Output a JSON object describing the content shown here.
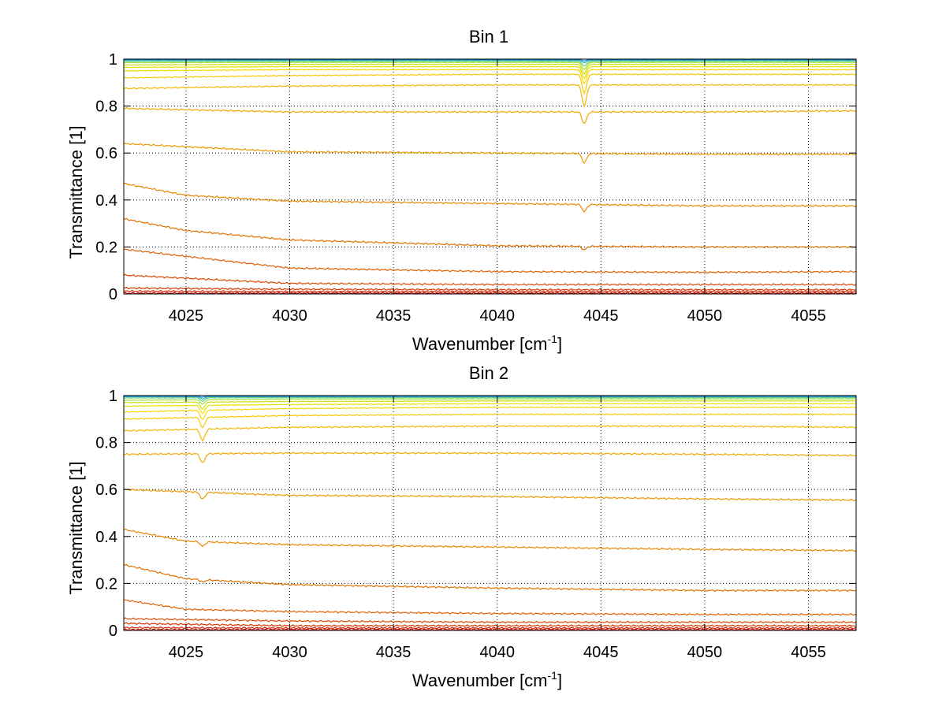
{
  "chart_data": [
    {
      "type": "line",
      "title": "Bin 1",
      "xlabel": "Wavenumber [cm-1]",
      "xlabel_base": "Wavenumber [cm",
      "xlabel_sup": "-1",
      "xlabel_end": "]",
      "ylabel": "Transmittance [1]",
      "xlim": [
        4022,
        4057.3
      ],
      "ylim": [
        0,
        1
      ],
      "xticks": [
        4025,
        4030,
        4035,
        4040,
        4045,
        4050,
        4055
      ],
      "xtick_labels": [
        "4025",
        "4030",
        "4035",
        "4040",
        "4045",
        "4050",
        "4055"
      ],
      "yticks": [
        0,
        0.2,
        0.4,
        0.6,
        0.8,
        1
      ],
      "ytick_labels": [
        "0",
        "0.2",
        "0.4",
        "0.6",
        "0.8",
        "1"
      ],
      "grid": true,
      "series_colors": [
        "#cc0000",
        "#d42200",
        "#d63800",
        "#dc4a00",
        "#e06000",
        "#e27000",
        "#e88800",
        "#ec9800",
        "#f0a800",
        "#f4b800",
        "#f8c800",
        "#f8d800",
        "#e8e000",
        "#c8e010",
        "#a0e040",
        "#60d080",
        "#30b0c0",
        "#1080e0"
      ],
      "series": [
        {
          "x": [
            4022,
            4030,
            4040,
            4050,
            4057.3
          ],
          "y": [
            0.003,
            0.003,
            0.003,
            0.003,
            0.003
          ],
          "dip": 0
        },
        {
          "x": [
            4022,
            4030,
            4040,
            4050,
            4057.3
          ],
          "y": [
            0.012,
            0.01,
            0.01,
            0.01,
            0.01
          ],
          "dip": 0
        },
        {
          "x": [
            4022,
            4030,
            4040,
            4050,
            4057.3
          ],
          "y": [
            0.025,
            0.02,
            0.018,
            0.018,
            0.018
          ],
          "dip": 0
        },
        {
          "x": [
            4022,
            4030,
            4040,
            4050,
            4057.3
          ],
          "y": [
            0.08,
            0.045,
            0.04,
            0.04,
            0.04
          ],
          "dip": 0
        },
        {
          "x": [
            4022,
            4030,
            4040,
            4050,
            4057.3
          ],
          "y": [
            0.19,
            0.11,
            0.095,
            0.092,
            0.095
          ],
          "dip": 0
        },
        {
          "x": [
            4022,
            4025,
            4030,
            4040,
            4050,
            4057.3
          ],
          "y": [
            0.32,
            0.27,
            0.23,
            0.205,
            0.2,
            0.2
          ],
          "dip": 0.015
        },
        {
          "x": [
            4022,
            4025,
            4030,
            4040,
            4050,
            4057.3
          ],
          "y": [
            0.47,
            0.42,
            0.395,
            0.385,
            0.375,
            0.375
          ],
          "dip": 0.03
        },
        {
          "x": [
            4022,
            4030,
            4040,
            4050,
            4057.3
          ],
          "y": [
            0.64,
            0.605,
            0.6,
            0.595,
            0.595
          ],
          "dip": 0.04
        },
        {
          "x": [
            4022,
            4030,
            4040,
            4050,
            4057.3
          ],
          "y": [
            0.79,
            0.775,
            0.775,
            0.775,
            0.78
          ],
          "dip": 0.05
        },
        {
          "x": [
            4022,
            4030,
            4040,
            4050,
            4057.3
          ],
          "y": [
            0.875,
            0.885,
            0.89,
            0.89,
            0.89
          ],
          "dip": 0.09
        },
        {
          "x": [
            4022,
            4030,
            4040,
            4050,
            4057.3
          ],
          "y": [
            0.92,
            0.93,
            0.935,
            0.935,
            0.935
          ],
          "dip": 0.08
        },
        {
          "x": [
            4022,
            4030,
            4040,
            4050,
            4057.3
          ],
          "y": [
            0.95,
            0.955,
            0.955,
            0.955,
            0.955
          ],
          "dip": 0.06
        },
        {
          "x": [
            4022,
            4030,
            4040,
            4050,
            4057.3
          ],
          "y": [
            0.965,
            0.968,
            0.968,
            0.968,
            0.968
          ],
          "dip": 0.05
        },
        {
          "x": [
            4022,
            4030,
            4040,
            4050,
            4057.3
          ],
          "y": [
            0.975,
            0.978,
            0.978,
            0.978,
            0.978
          ],
          "dip": 0.04
        },
        {
          "x": [
            4022,
            4030,
            4040,
            4050,
            4057.3
          ],
          "y": [
            0.985,
            0.986,
            0.986,
            0.986,
            0.986
          ],
          "dip": 0.03
        },
        {
          "x": [
            4022,
            4030,
            4040,
            4050,
            4057.3
          ],
          "y": [
            0.99,
            0.991,
            0.991,
            0.991,
            0.991
          ],
          "dip": 0.02
        },
        {
          "x": [
            4022,
            4030,
            4040,
            4050,
            4057.3
          ],
          "y": [
            0.995,
            0.995,
            0.995,
            0.995,
            0.995
          ],
          "dip": 0.01
        },
        {
          "x": [
            4022,
            4030,
            4040,
            4050,
            4057.3
          ],
          "y": [
            0.998,
            0.998,
            0.998,
            0.998,
            0.998
          ],
          "dip": 0.005
        }
      ],
      "feature_x": 4044.2,
      "feature_width": 0.15
    },
    {
      "type": "line",
      "title": "Bin 2",
      "xlabel": "Wavenumber [cm-1]",
      "xlabel_base": "Wavenumber [cm",
      "xlabel_sup": "-1",
      "xlabel_end": "]",
      "ylabel": "Transmittance [1]",
      "xlim": [
        4022,
        4057.3
      ],
      "ylim": [
        0,
        1
      ],
      "xticks": [
        4025,
        4030,
        4035,
        4040,
        4045,
        4050,
        4055
      ],
      "xtick_labels": [
        "4025",
        "4030",
        "4035",
        "4040",
        "4045",
        "4050",
        "4055"
      ],
      "yticks": [
        0,
        0.2,
        0.4,
        0.6,
        0.8,
        1
      ],
      "ytick_labels": [
        "0",
        "0.2",
        "0.4",
        "0.6",
        "0.8",
        "1"
      ],
      "grid": true,
      "series_colors": [
        "#cc0000",
        "#d42200",
        "#d63800",
        "#dc4a00",
        "#e06000",
        "#e27000",
        "#e88800",
        "#ec9800",
        "#f0a800",
        "#f4b800",
        "#f8c800",
        "#f8d800",
        "#e8e000",
        "#c8e010",
        "#a0e040",
        "#60d080",
        "#30b0c0",
        "#1080e0"
      ],
      "series": [
        {
          "x": [
            4022,
            4030,
            4040,
            4050,
            4057.3
          ],
          "y": [
            0.003,
            0.003,
            0.003,
            0.003,
            0.003
          ],
          "dip": 0
        },
        {
          "x": [
            4022,
            4030,
            4040,
            4050,
            4057.3
          ],
          "y": [
            0.012,
            0.01,
            0.01,
            0.01,
            0.01
          ],
          "dip": 0
        },
        {
          "x": [
            4022,
            4030,
            4040,
            4050,
            4057.3
          ],
          "y": [
            0.03,
            0.02,
            0.02,
            0.02,
            0.02
          ],
          "dip": 0
        },
        {
          "x": [
            4022,
            4030,
            4040,
            4050,
            4057.3
          ],
          "y": [
            0.05,
            0.04,
            0.035,
            0.035,
            0.035
          ],
          "dip": 0
        },
        {
          "x": [
            4022,
            4025,
            4030,
            4040,
            4050,
            4057.3
          ],
          "y": [
            0.13,
            0.09,
            0.08,
            0.072,
            0.068,
            0.068
          ],
          "dip": 0
        },
        {
          "x": [
            4022,
            4025,
            4030,
            4040,
            4050,
            4057.3
          ],
          "y": [
            0.28,
            0.22,
            0.195,
            0.18,
            0.17,
            0.17
          ],
          "dip": 0.01
        },
        {
          "x": [
            4022,
            4025,
            4030,
            4040,
            4050,
            4057.3
          ],
          "y": [
            0.43,
            0.38,
            0.365,
            0.355,
            0.345,
            0.34
          ],
          "dip": 0.02
        },
        {
          "x": [
            4022,
            4030,
            4040,
            4050,
            4057.3
          ],
          "y": [
            0.6,
            0.575,
            0.57,
            0.56,
            0.555
          ],
          "dip": 0.03
        },
        {
          "x": [
            4022,
            4030,
            4040,
            4050,
            4057.3
          ],
          "y": [
            0.75,
            0.755,
            0.755,
            0.75,
            0.745
          ],
          "dip": 0.04
        },
        {
          "x": [
            4022,
            4030,
            4040,
            4050,
            4057.3
          ],
          "y": [
            0.85,
            0.865,
            0.87,
            0.87,
            0.865
          ],
          "dip": 0.05
        },
        {
          "x": [
            4022,
            4030,
            4040,
            4050,
            4057.3
          ],
          "y": [
            0.9,
            0.915,
            0.92,
            0.92,
            0.92
          ],
          "dip": 0.045
        },
        {
          "x": [
            4022,
            4030,
            4040,
            4050,
            4057.3
          ],
          "y": [
            0.93,
            0.945,
            0.95,
            0.95,
            0.95
          ],
          "dip": 0.04
        },
        {
          "x": [
            4022,
            4030,
            4040,
            4050,
            4057.3
          ],
          "y": [
            0.955,
            0.962,
            0.965,
            0.965,
            0.965
          ],
          "dip": 0.035
        },
        {
          "x": [
            4022,
            4030,
            4040,
            4050,
            4057.3
          ],
          "y": [
            0.97,
            0.975,
            0.977,
            0.977,
            0.977
          ],
          "dip": 0.03
        },
        {
          "x": [
            4022,
            4030,
            4040,
            4050,
            4057.3
          ],
          "y": [
            0.98,
            0.985,
            0.986,
            0.986,
            0.986
          ],
          "dip": 0.02
        },
        {
          "x": [
            4022,
            4030,
            4040,
            4050,
            4057.3
          ],
          "y": [
            0.99,
            0.991,
            0.991,
            0.991,
            0.991
          ],
          "dip": 0.015
        },
        {
          "x": [
            4022,
            4030,
            4040,
            4050,
            4057.3
          ],
          "y": [
            0.995,
            0.995,
            0.995,
            0.995,
            0.995
          ],
          "dip": 0.01
        },
        {
          "x": [
            4022,
            4030,
            4040,
            4050,
            4057.3
          ],
          "y": [
            0.998,
            0.998,
            0.998,
            0.998,
            0.998
          ],
          "dip": 0.005
        }
      ],
      "feature_x": 4025.8,
      "feature_width": 0.15
    }
  ]
}
